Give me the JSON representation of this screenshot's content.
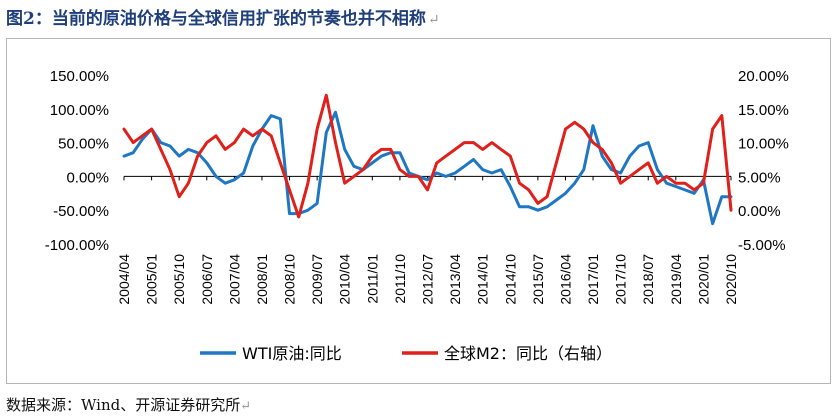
{
  "title": "图2：当前的原油价格与全球信用扩张的节奏也并不相称",
  "return_mark": "↵",
  "source": "数据来源：Wind、开源证券研究所",
  "chart_data": {
    "type": "line",
    "title": "",
    "xlabel": "",
    "ylabel": "",
    "x_ticks": [
      "2004/04",
      "2005/01",
      "2005/10",
      "2006/07",
      "2007/04",
      "2008/01",
      "2008/10",
      "2009/07",
      "2010/04",
      "2011/01",
      "2011/10",
      "2012/07",
      "2013/04",
      "2014/01",
      "2014/10",
      "2015/07",
      "2016/04",
      "2017/01",
      "2017/10",
      "2018/07",
      "2019/04",
      "2020/01",
      "2020/10"
    ],
    "y_left_ticks": [
      "150.00%",
      "100.00%",
      "50.00%",
      "0.00%",
      "-50.00%",
      "-100.00%"
    ],
    "y_right_ticks": [
      "20.00%",
      "15.00%",
      "10.00%",
      "5.00%",
      "0.00%",
      "-5.00%"
    ],
    "ylim_left": [
      -100,
      150
    ],
    "ylim_right": [
      -5,
      20
    ],
    "legend_position": "bottom",
    "series": [
      {
        "name": "WTI原油:同比",
        "axis": "left",
        "color": "#1f77c4",
        "x": [
          "2004/04",
          "2004/07",
          "2004/10",
          "2005/01",
          "2005/04",
          "2005/07",
          "2005/10",
          "2006/01",
          "2006/04",
          "2006/07",
          "2006/10",
          "2007/01",
          "2007/04",
          "2007/07",
          "2007/10",
          "2008/01",
          "2008/04",
          "2008/07",
          "2008/10",
          "2009/01",
          "2009/04",
          "2009/07",
          "2009/10",
          "2010/01",
          "2010/04",
          "2010/07",
          "2010/10",
          "2011/01",
          "2011/04",
          "2011/07",
          "2011/10",
          "2012/01",
          "2012/04",
          "2012/07",
          "2012/10",
          "2013/01",
          "2013/04",
          "2013/07",
          "2013/10",
          "2014/01",
          "2014/04",
          "2014/07",
          "2014/10",
          "2015/01",
          "2015/04",
          "2015/07",
          "2015/10",
          "2016/01",
          "2016/04",
          "2016/07",
          "2016/10",
          "2017/01",
          "2017/04",
          "2017/07",
          "2017/10",
          "2018/01",
          "2018/04",
          "2018/07",
          "2018/10",
          "2019/01",
          "2019/04",
          "2019/07",
          "2019/10",
          "2020/01",
          "2020/04",
          "2020/07",
          "2020/10"
        ],
        "values": [
          30,
          35,
          55,
          70,
          50,
          45,
          30,
          40,
          35,
          20,
          0,
          -10,
          -5,
          5,
          45,
          70,
          90,
          85,
          -55,
          -55,
          -50,
          -40,
          65,
          95,
          40,
          15,
          10,
          20,
          30,
          35,
          35,
          5,
          0,
          -5,
          5,
          0,
          5,
          15,
          25,
          10,
          5,
          10,
          -15,
          -45,
          -45,
          -50,
          -45,
          -35,
          -25,
          -10,
          10,
          75,
          30,
          10,
          5,
          30,
          45,
          50,
          10,
          -10,
          -15,
          -20,
          -25,
          -5,
          -70,
          -30,
          -30
        ]
      },
      {
        "name": "全球M2：同比（右轴）",
        "axis": "right",
        "color": "#e0201b",
        "x": [
          "2004/04",
          "2004/07",
          "2004/10",
          "2005/01",
          "2005/04",
          "2005/07",
          "2005/10",
          "2006/01",
          "2006/04",
          "2006/07",
          "2006/10",
          "2007/01",
          "2007/04",
          "2007/07",
          "2007/10",
          "2008/01",
          "2008/04",
          "2008/07",
          "2008/10",
          "2009/01",
          "2009/04",
          "2009/07",
          "2009/10",
          "2010/01",
          "2010/04",
          "2010/07",
          "2010/10",
          "2011/01",
          "2011/04",
          "2011/07",
          "2011/10",
          "2012/01",
          "2012/04",
          "2012/07",
          "2012/10",
          "2013/01",
          "2013/04",
          "2013/07",
          "2013/10",
          "2014/01",
          "2014/04",
          "2014/07",
          "2014/10",
          "2015/01",
          "2015/04",
          "2015/07",
          "2015/10",
          "2016/01",
          "2016/04",
          "2016/07",
          "2016/10",
          "2017/01",
          "2017/04",
          "2017/07",
          "2017/10",
          "2018/01",
          "2018/04",
          "2018/07",
          "2018/10",
          "2019/01",
          "2019/04",
          "2019/07",
          "2019/10",
          "2020/01",
          "2020/04",
          "2020/07",
          "2020/10"
        ],
        "values": [
          12,
          10,
          11,
          12,
          9,
          6,
          2,
          4,
          8,
          10,
          11,
          9,
          10,
          12,
          11,
          12,
          11,
          7,
          3,
          -1,
          4,
          12,
          17,
          10,
          4,
          5,
          6,
          8,
          9,
          9,
          6,
          5,
          5,
          3,
          7,
          8,
          9,
          10,
          10,
          9,
          10,
          9,
          8,
          4,
          3,
          1,
          2,
          7,
          12,
          13,
          12,
          10,
          9,
          7,
          4,
          5,
          6,
          7,
          4,
          5,
          4,
          4,
          3,
          4,
          12,
          14,
          0
        ]
      }
    ]
  }
}
